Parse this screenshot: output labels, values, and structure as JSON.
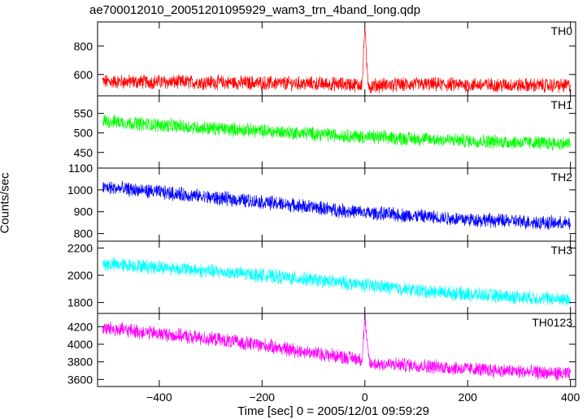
{
  "chart_data": {
    "type": "line",
    "title": "ae700012010_20051201095929_wam3_trn_4band_long.qdp",
    "xlabel": "Time [sec] 0 = 2005/12/01 09:59:29",
    "ylabel": "Counts/sec",
    "xlim": [
      -520,
      410
    ],
    "xticks": [
      -400,
      -200,
      0,
      200,
      400
    ],
    "shared_x_axis": true,
    "panels": [
      {
        "name": "TH0",
        "color": "#ff0000",
        "ylim": [
          450,
          970
        ],
        "yticks": [
          600,
          800
        ],
        "series": {
          "x": [
            -500,
            -400,
            -300,
            -200,
            -100,
            -20,
            -10,
            -5,
            0,
            3,
            6,
            10,
            20,
            100,
            200,
            300,
            400
          ],
          "y": [
            550,
            548,
            545,
            540,
            535,
            530,
            525,
            540,
            960,
            700,
            560,
            510,
            525,
            530,
            528,
            525,
            522
          ]
        }
      },
      {
        "name": "TH1",
        "color": "#00ff00",
        "ylim": [
          410,
          595
        ],
        "yticks": [
          450,
          500,
          550
        ],
        "series": {
          "x": [
            -500,
            -400,
            -300,
            -200,
            -100,
            0,
            100,
            200,
            300,
            400
          ],
          "y": [
            530,
            520,
            512,
            505,
            498,
            490,
            485,
            480,
            476,
            472
          ]
        }
      },
      {
        "name": "TH2",
        "color": "#0000ff",
        "ylim": [
          765,
          1100
        ],
        "yticks": [
          800,
          900,
          1000,
          1100
        ],
        "series": {
          "x": [
            -500,
            -400,
            -300,
            -200,
            -100,
            0,
            100,
            200,
            300,
            400
          ],
          "y": [
            1010,
            990,
            965,
            945,
            920,
            895,
            880,
            865,
            855,
            845
          ]
        }
      },
      {
        "name": "TH3",
        "color": "#00ffff",
        "ylim": [
          1720,
          2250
        ],
        "yticks": [
          1800,
          2000,
          2200
        ],
        "series": {
          "x": [
            -500,
            -400,
            -300,
            -200,
            -100,
            0,
            100,
            200,
            300,
            400
          ],
          "y": [
            2080,
            2060,
            2030,
            2000,
            1965,
            1930,
            1890,
            1860,
            1840,
            1820
          ]
        }
      },
      {
        "name": "TH0123",
        "color": "#ff00ff",
        "ylim": [
          3520,
          4350
        ],
        "yticks": [
          3600,
          3800,
          4000,
          4200
        ],
        "series": {
          "x": [
            -500,
            -400,
            -300,
            -200,
            -100,
            -5,
            0,
            5,
            10,
            100,
            200,
            300,
            400
          ],
          "y": [
            4180,
            4120,
            4060,
            3990,
            3900,
            3830,
            4320,
            3950,
            3780,
            3760,
            3720,
            3690,
            3660
          ]
        }
      }
    ]
  }
}
